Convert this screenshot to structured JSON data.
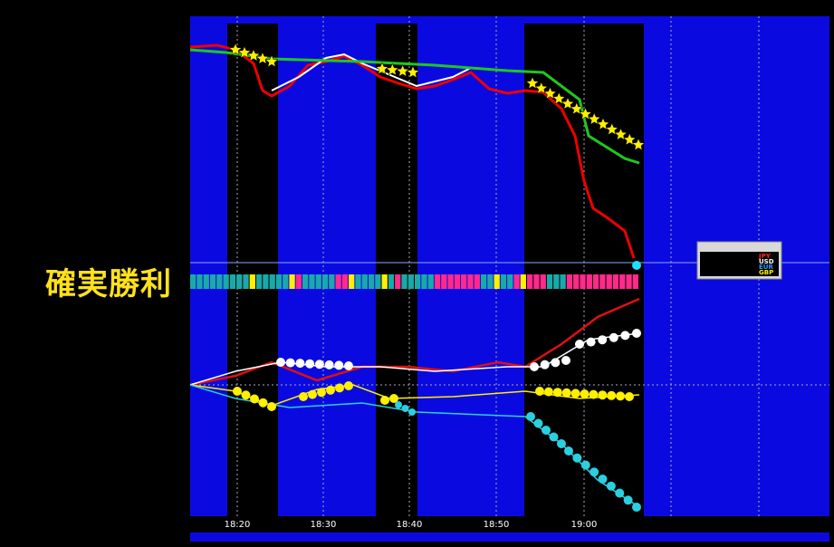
{
  "headline": "確実勝利",
  "time_axis": {
    "labels": [
      "18:20",
      "18:30",
      "18:40",
      "18:50",
      "19:00"
    ]
  },
  "legend": {
    "items": [
      "JPY",
      "USD",
      "EUR",
      "GBP"
    ]
  }
}
